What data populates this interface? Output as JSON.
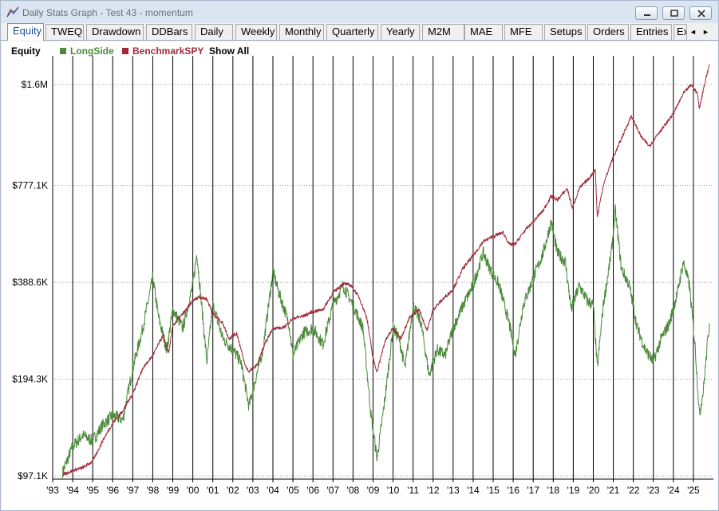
{
  "window": {
    "title": "Daily Stats Graph - Test 43 - momentum",
    "minimize_icon": "minimize-icon",
    "maximize_icon": "maximize-icon",
    "close_icon": "close-icon"
  },
  "tabs": [
    {
      "label": "Equity",
      "active": true
    },
    {
      "label": "TWEQ"
    },
    {
      "label": "Drawdown"
    },
    {
      "label": "DDBars"
    },
    {
      "label": "Daily"
    },
    {
      "label": "Weekly"
    },
    {
      "label": "Monthly"
    },
    {
      "label": "Quarterly"
    },
    {
      "label": "Yearly"
    },
    {
      "label": "M2M"
    },
    {
      "label": "MAE"
    },
    {
      "label": "MFE"
    },
    {
      "label": "Setups"
    },
    {
      "label": "Orders"
    },
    {
      "label": "Entries"
    },
    {
      "label": "Ex"
    }
  ],
  "tab_scroll": {
    "left_icon": "scroll-left-icon",
    "right_icon": "scroll-right-icon",
    "left": "◄",
    "right": "►"
  },
  "legend": {
    "title": "Equity",
    "show_all": "Show All",
    "items": [
      {
        "label": "LongSide",
        "color": "#4a8a3a"
      },
      {
        "label": "BenchmarkSPY",
        "color": "#a02a3a"
      }
    ]
  },
  "chart_data": {
    "type": "line",
    "y_scale": "log",
    "ylim": [
      95000,
      1900000
    ],
    "y_ticks": [
      {
        "value": 97100,
        "label": "$97.1K"
      },
      {
        "value": 194300,
        "label": "$194.3K"
      },
      {
        "value": 388600,
        "label": "$388.6K"
      },
      {
        "value": 777100,
        "label": "$777.1K"
      },
      {
        "value": 1600000,
        "label": "$1.6M"
      }
    ],
    "xlim": [
      1993.0,
      2026.0
    ],
    "x_ticks": [
      "'93",
      "'94",
      "'95",
      "'96",
      "'97",
      "'98",
      "'99",
      "'00",
      "'01",
      "'02",
      "'03",
      "'04",
      "'05",
      "'06",
      "'07",
      "'08",
      "'09",
      "'10",
      "'11",
      "'12",
      "'13",
      "'14",
      "'15",
      "'16",
      "'17",
      "'18",
      "'19",
      "'20",
      "'21",
      "'22",
      "'23",
      "'24",
      "'25"
    ],
    "x_tick_values": [
      1993,
      1994,
      1995,
      1996,
      1997,
      1998,
      1999,
      2000,
      2001,
      2002,
      2003,
      2004,
      2005,
      2006,
      2007,
      2008,
      2009,
      2010,
      2011,
      2012,
      2013,
      2014,
      2015,
      2016,
      2017,
      2018,
      2019,
      2020,
      2021,
      2022,
      2023,
      2024,
      2025
    ],
    "series": [
      {
        "name": "LongSide",
        "color": "#4a8a3a",
        "points": [
          [
            1993.5,
            100000
          ],
          [
            1994.0,
            120000
          ],
          [
            1994.5,
            130000
          ],
          [
            1995.0,
            125000
          ],
          [
            1995.5,
            140000
          ],
          [
            1996.0,
            150000
          ],
          [
            1996.5,
            145000
          ],
          [
            1997.0,
            210000
          ],
          [
            1997.5,
            280000
          ],
          [
            1998.0,
            400000
          ],
          [
            1998.3,
            300000
          ],
          [
            1998.7,
            240000
          ],
          [
            1999.0,
            320000
          ],
          [
            1999.5,
            280000
          ],
          [
            2000.0,
            380000
          ],
          [
            2000.2,
            480000
          ],
          [
            2000.4,
            350000
          ],
          [
            2000.7,
            220000
          ],
          [
            2001.0,
            330000
          ],
          [
            2001.5,
            260000
          ],
          [
            2002.0,
            240000
          ],
          [
            2002.4,
            220000
          ],
          [
            2002.8,
            160000
          ],
          [
            2003.0,
            180000
          ],
          [
            2003.5,
            240000
          ],
          [
            2004.0,
            420000
          ],
          [
            2004.3,
            360000
          ],
          [
            2004.8,
            290000
          ],
          [
            2005.0,
            230000
          ],
          [
            2005.5,
            270000
          ],
          [
            2006.0,
            280000
          ],
          [
            2006.5,
            250000
          ],
          [
            2007.0,
            330000
          ],
          [
            2007.5,
            380000
          ],
          [
            2008.0,
            330000
          ],
          [
            2008.5,
            280000
          ],
          [
            2008.9,
            150000
          ],
          [
            2009.2,
            110000
          ],
          [
            2009.6,
            170000
          ],
          [
            2010.0,
            280000
          ],
          [
            2010.3,
            260000
          ],
          [
            2010.6,
            210000
          ],
          [
            2011.0,
            330000
          ],
          [
            2011.4,
            290000
          ],
          [
            2011.8,
            200000
          ],
          [
            2012.2,
            240000
          ],
          [
            2012.6,
            230000
          ],
          [
            2013.0,
            280000
          ],
          [
            2013.5,
            330000
          ],
          [
            2014.0,
            380000
          ],
          [
            2014.5,
            480000
          ],
          [
            2014.9,
            420000
          ],
          [
            2015.3,
            380000
          ],
          [
            2015.8,
            290000
          ],
          [
            2016.1,
            230000
          ],
          [
            2016.5,
            330000
          ],
          [
            2017.0,
            400000
          ],
          [
            2017.5,
            480000
          ],
          [
            2017.9,
            600000
          ],
          [
            2018.2,
            480000
          ],
          [
            2018.6,
            450000
          ],
          [
            2018.9,
            320000
          ],
          [
            2019.3,
            380000
          ],
          [
            2019.7,
            340000
          ],
          [
            2020.0,
            330000
          ],
          [
            2020.2,
            210000
          ],
          [
            2020.5,
            330000
          ],
          [
            2020.9,
            480000
          ],
          [
            2021.1,
            650000
          ],
          [
            2021.4,
            430000
          ],
          [
            2021.8,
            380000
          ],
          [
            2022.2,
            280000
          ],
          [
            2022.6,
            240000
          ],
          [
            2023.0,
            220000
          ],
          [
            2023.4,
            260000
          ],
          [
            2023.8,
            290000
          ],
          [
            2024.2,
            360000
          ],
          [
            2024.5,
            450000
          ],
          [
            2024.8,
            380000
          ],
          [
            2025.1,
            240000
          ],
          [
            2025.3,
            150000
          ],
          [
            2025.5,
            180000
          ],
          [
            2025.7,
            250000
          ],
          [
            2025.8,
            290000
          ]
        ]
      },
      {
        "name": "BenchmarkSPY",
        "color": "#a02a3a",
        "points": [
          [
            1993.5,
            98000
          ],
          [
            1994.0,
            101000
          ],
          [
            1994.5,
            103000
          ],
          [
            1995.0,
            108000
          ],
          [
            1995.5,
            125000
          ],
          [
            1996.0,
            142000
          ],
          [
            1996.5,
            155000
          ],
          [
            1997.0,
            175000
          ],
          [
            1997.5,
            210000
          ],
          [
            1998.0,
            230000
          ],
          [
            1998.5,
            265000
          ],
          [
            1998.8,
            235000
          ],
          [
            1999.0,
            285000
          ],
          [
            1999.5,
            310000
          ],
          [
            2000.0,
            340000
          ],
          [
            2000.3,
            350000
          ],
          [
            2000.7,
            345000
          ],
          [
            2001.0,
            310000
          ],
          [
            2001.5,
            290000
          ],
          [
            2001.8,
            260000
          ],
          [
            2002.2,
            270000
          ],
          [
            2002.6,
            215000
          ],
          [
            2002.8,
            205000
          ],
          [
            2003.2,
            215000
          ],
          [
            2003.6,
            250000
          ],
          [
            2004.0,
            280000
          ],
          [
            2004.5,
            280000
          ],
          [
            2005.0,
            300000
          ],
          [
            2005.5,
            305000
          ],
          [
            2006.0,
            315000
          ],
          [
            2006.5,
            320000
          ],
          [
            2007.0,
            360000
          ],
          [
            2007.5,
            385000
          ],
          [
            2007.9,
            380000
          ],
          [
            2008.3,
            350000
          ],
          [
            2008.7,
            300000
          ],
          [
            2009.0,
            225000
          ],
          [
            2009.2,
            205000
          ],
          [
            2009.6,
            255000
          ],
          [
            2010.0,
            280000
          ],
          [
            2010.4,
            260000
          ],
          [
            2010.8,
            300000
          ],
          [
            2011.3,
            320000
          ],
          [
            2011.7,
            275000
          ],
          [
            2012.0,
            320000
          ],
          [
            2012.5,
            345000
          ],
          [
            2013.0,
            370000
          ],
          [
            2013.5,
            430000
          ],
          [
            2014.0,
            470000
          ],
          [
            2014.5,
            520000
          ],
          [
            2015.0,
            540000
          ],
          [
            2015.5,
            555000
          ],
          [
            2015.8,
            510000
          ],
          [
            2016.1,
            510000
          ],
          [
            2016.5,
            555000
          ],
          [
            2017.0,
            600000
          ],
          [
            2017.5,
            650000
          ],
          [
            2017.9,
            720000
          ],
          [
            2018.2,
            700000
          ],
          [
            2018.7,
            760000
          ],
          [
            2018.95,
            660000
          ],
          [
            2019.3,
            760000
          ],
          [
            2019.8,
            820000
          ],
          [
            2020.1,
            870000
          ],
          [
            2020.2,
            620000
          ],
          [
            2020.5,
            780000
          ],
          [
            2020.9,
            920000
          ],
          [
            2021.3,
            1050000
          ],
          [
            2021.9,
            1280000
          ],
          [
            2022.4,
            1100000
          ],
          [
            2022.8,
            1030000
          ],
          [
            2023.2,
            1120000
          ],
          [
            2023.6,
            1200000
          ],
          [
            2024.0,
            1300000
          ],
          [
            2024.5,
            1500000
          ],
          [
            2024.9,
            1600000
          ],
          [
            2025.2,
            1500000
          ],
          [
            2025.3,
            1350000
          ],
          [
            2025.5,
            1550000
          ],
          [
            2025.8,
            1850000
          ]
        ]
      }
    ]
  }
}
